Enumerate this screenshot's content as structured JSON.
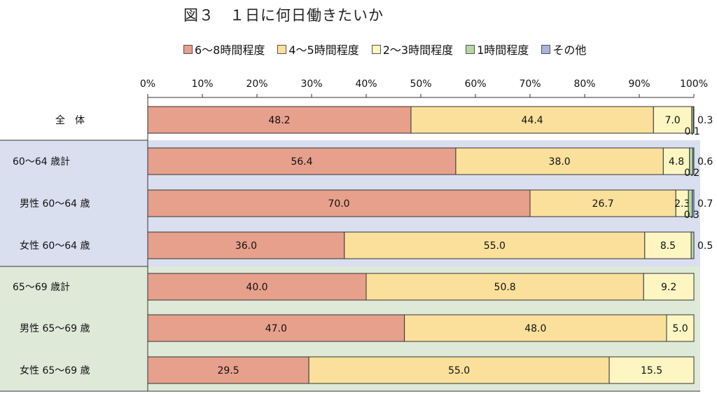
{
  "chart_data": {
    "type": "bar",
    "orientation": "horizontal",
    "stacked": true,
    "percent": true,
    "title": "図３　１日に何日働きたいか",
    "categories": [
      "全　体",
      "60～64 歳計",
      "男性 60～64 歳",
      "女性 60～64 歳",
      "65～69 歳計",
      "男性 65～69 歳",
      "女性 65～69 歳"
    ],
    "ticks": [
      "0%",
      "10%",
      "20%",
      "30%",
      "40%",
      "50%",
      "60%",
      "70%",
      "80%",
      "90%",
      "100%"
    ],
    "xlim": [
      0,
      100
    ],
    "legend_position": "top",
    "series": [
      {
        "name": "6～8時間程度",
        "color": "#E6A08C",
        "values": [
          48.2,
          56.4,
          70.0,
          36.0,
          40.0,
          47.0,
          29.5
        ],
        "labels": [
          "48.2",
          "56.4",
          "70.0",
          "36.0",
          "40.0",
          "47.0",
          "29.5"
        ]
      },
      {
        "name": "4～5時間程度",
        "color": "#FAE09A",
        "values": [
          44.4,
          38.0,
          26.7,
          55.0,
          50.8,
          48.0,
          55.0
        ],
        "labels": [
          "44.4",
          "38.0",
          "26.7",
          "55.0",
          "50.8",
          "48.0",
          "55.0"
        ]
      },
      {
        "name": "2～3時間程度",
        "color": "#FDF6C3",
        "values": [
          7.0,
          4.8,
          2.3,
          8.5,
          9.2,
          5.0,
          15.5
        ],
        "labels": [
          "7.0",
          "4.8",
          "2.3",
          "8.5",
          "9.2",
          "5.0",
          "15.5"
        ]
      },
      {
        "name": "1時間程度",
        "color": "#B5D8A6",
        "values": [
          0.3,
          0.6,
          0.7,
          0.5,
          0,
          0,
          0
        ],
        "labels": [
          "0.3",
          "0.6",
          "0.7",
          "0.5",
          "",
          "",
          ""
        ]
      },
      {
        "name": "その他",
        "color": "#A8B4DF",
        "values": [
          0.1,
          0.2,
          0.3,
          0,
          0,
          0,
          0
        ],
        "labels": [
          "0.1",
          "0.2",
          "0.3",
          "",
          "",
          "",
          ""
        ]
      }
    ],
    "group_backgrounds": [
      "#FFFFFF",
      "#DADFF0",
      "#DFE9D8"
    ]
  }
}
